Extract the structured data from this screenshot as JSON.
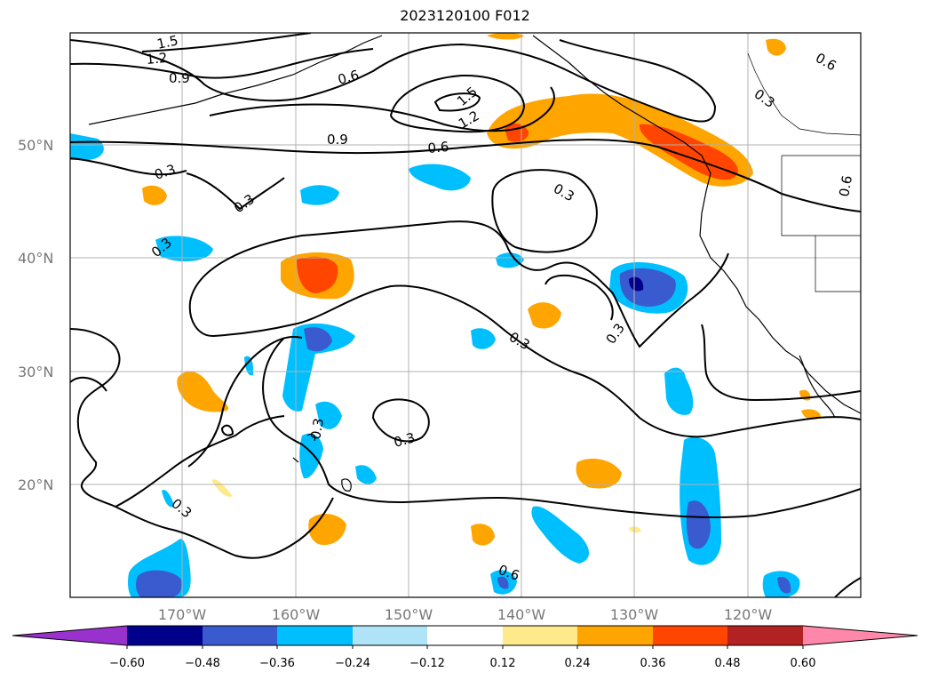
{
  "title": "2023120100 F012",
  "map": {
    "lat_labels": [
      "50°N",
      "40°N",
      "30°N",
      "20°N"
    ],
    "lon_labels": [
      "170°W",
      "160°W",
      "150°W",
      "140°W",
      "130°W",
      "120°W"
    ],
    "contour_labels": [
      "1.5",
      "1.2",
      "0.9",
      "0.6",
      "1.5",
      "1.2",
      "0.9",
      "0.6",
      "0.3",
      "0.3",
      "0.3",
      "0.3",
      "0.3",
      "0.3",
      "0.3",
      "0.6",
      "0.6",
      "0.3",
      "0.3",
      "0.3",
      "0.6"
    ],
    "colors": {
      "neg_extend": "#9932cc",
      "neg_060": "#00008b",
      "neg_048": "#3a5bcf",
      "neg_036": "#00bfff",
      "neg_024": "#aee3f8",
      "pos_024": "#ffe98a",
      "pos_036": "#ffa500",
      "pos_048": "#ff4500",
      "pos_060": "#b22222",
      "pos_extend": "#ff88aa"
    }
  },
  "colorbar": {
    "ticks": [
      "−0.60",
      "−0.48",
      "−0.36",
      "−0.24",
      "−0.12",
      "0.12",
      "0.24",
      "0.36",
      "0.48",
      "0.60"
    ],
    "colors": [
      "#9932cc",
      "#00008b",
      "#3a5bcf",
      "#00bfff",
      "#aee3f8",
      "#ffffff",
      "#ffe98a",
      "#ffa500",
      "#ff4500",
      "#b22222",
      "#ff88aa"
    ]
  }
}
